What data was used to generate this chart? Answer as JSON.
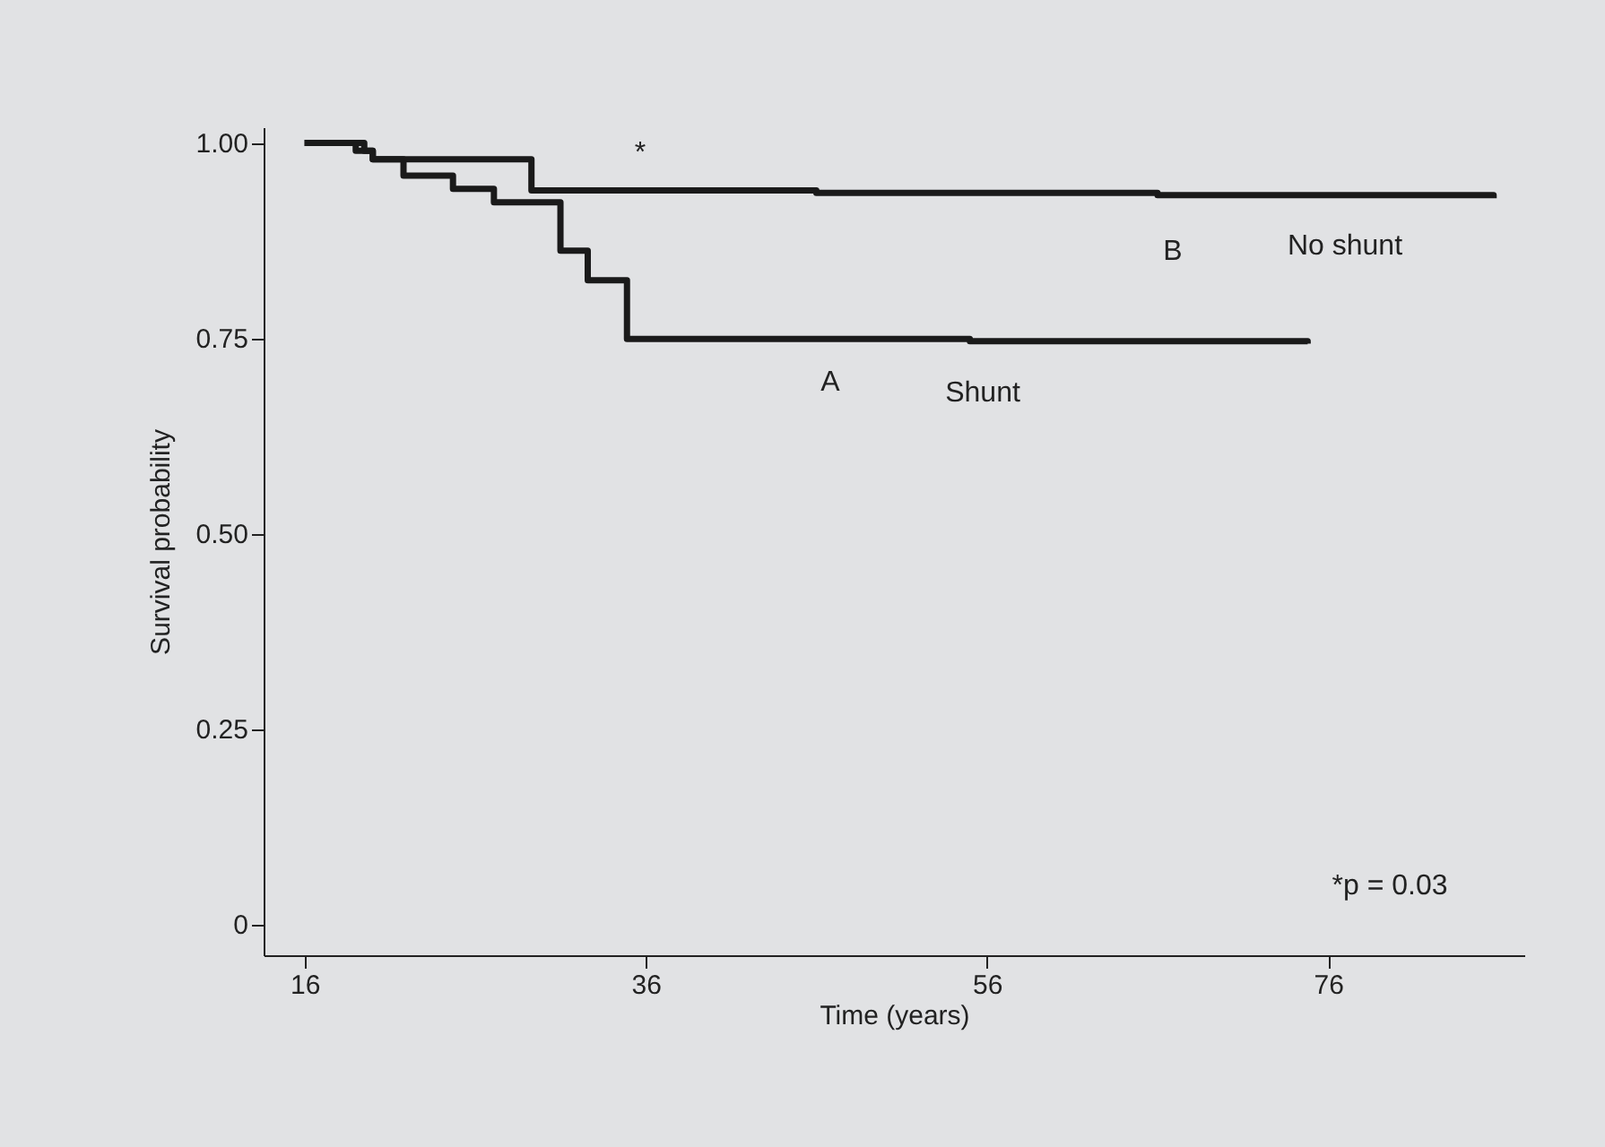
{
  "chart_data": {
    "type": "step",
    "xlabel": "Time (years)",
    "ylabel": "Survival probability",
    "series": [
      {
        "color": "#1a1a1a",
        "x": [
          16,
          19,
          20,
          21.8,
          24.7,
          27.1,
          31.0,
          32.6,
          34.9,
          55,
          74.8
        ],
        "values": [
          1.0,
          0.99,
          0.979,
          0.958,
          0.941,
          0.924,
          0.862,
          0.824,
          0.749,
          0.746,
          0.743
        ]
      },
      {
        "color": "#1a1a1a",
        "x": [
          16,
          19.5,
          20,
          29.3,
          46,
          66,
          85.7
        ],
        "values": [
          1.0,
          0.99,
          0.979,
          0.939,
          0.936,
          0.933,
          0.929
        ]
      }
    ],
    "xlim": [
      13.6,
      87.5
    ],
    "xticks": [
      16,
      36,
      56,
      76
    ],
    "ylim": [
      -0.04,
      1.02
    ],
    "yticks": [
      {
        "value": 0,
        "label": "0"
      },
      {
        "value": 0.25,
        "label": "0.25"
      },
      {
        "value": 0.5,
        "label": "0.50"
      },
      {
        "value": 0.75,
        "label": "0.75"
      },
      {
        "value": 1,
        "label": "1.00"
      }
    ],
    "annotations": [
      "*",
      "A",
      "Shunt",
      "B",
      "No shunt",
      "*p = 0.03"
    ],
    "grid": false
  }
}
